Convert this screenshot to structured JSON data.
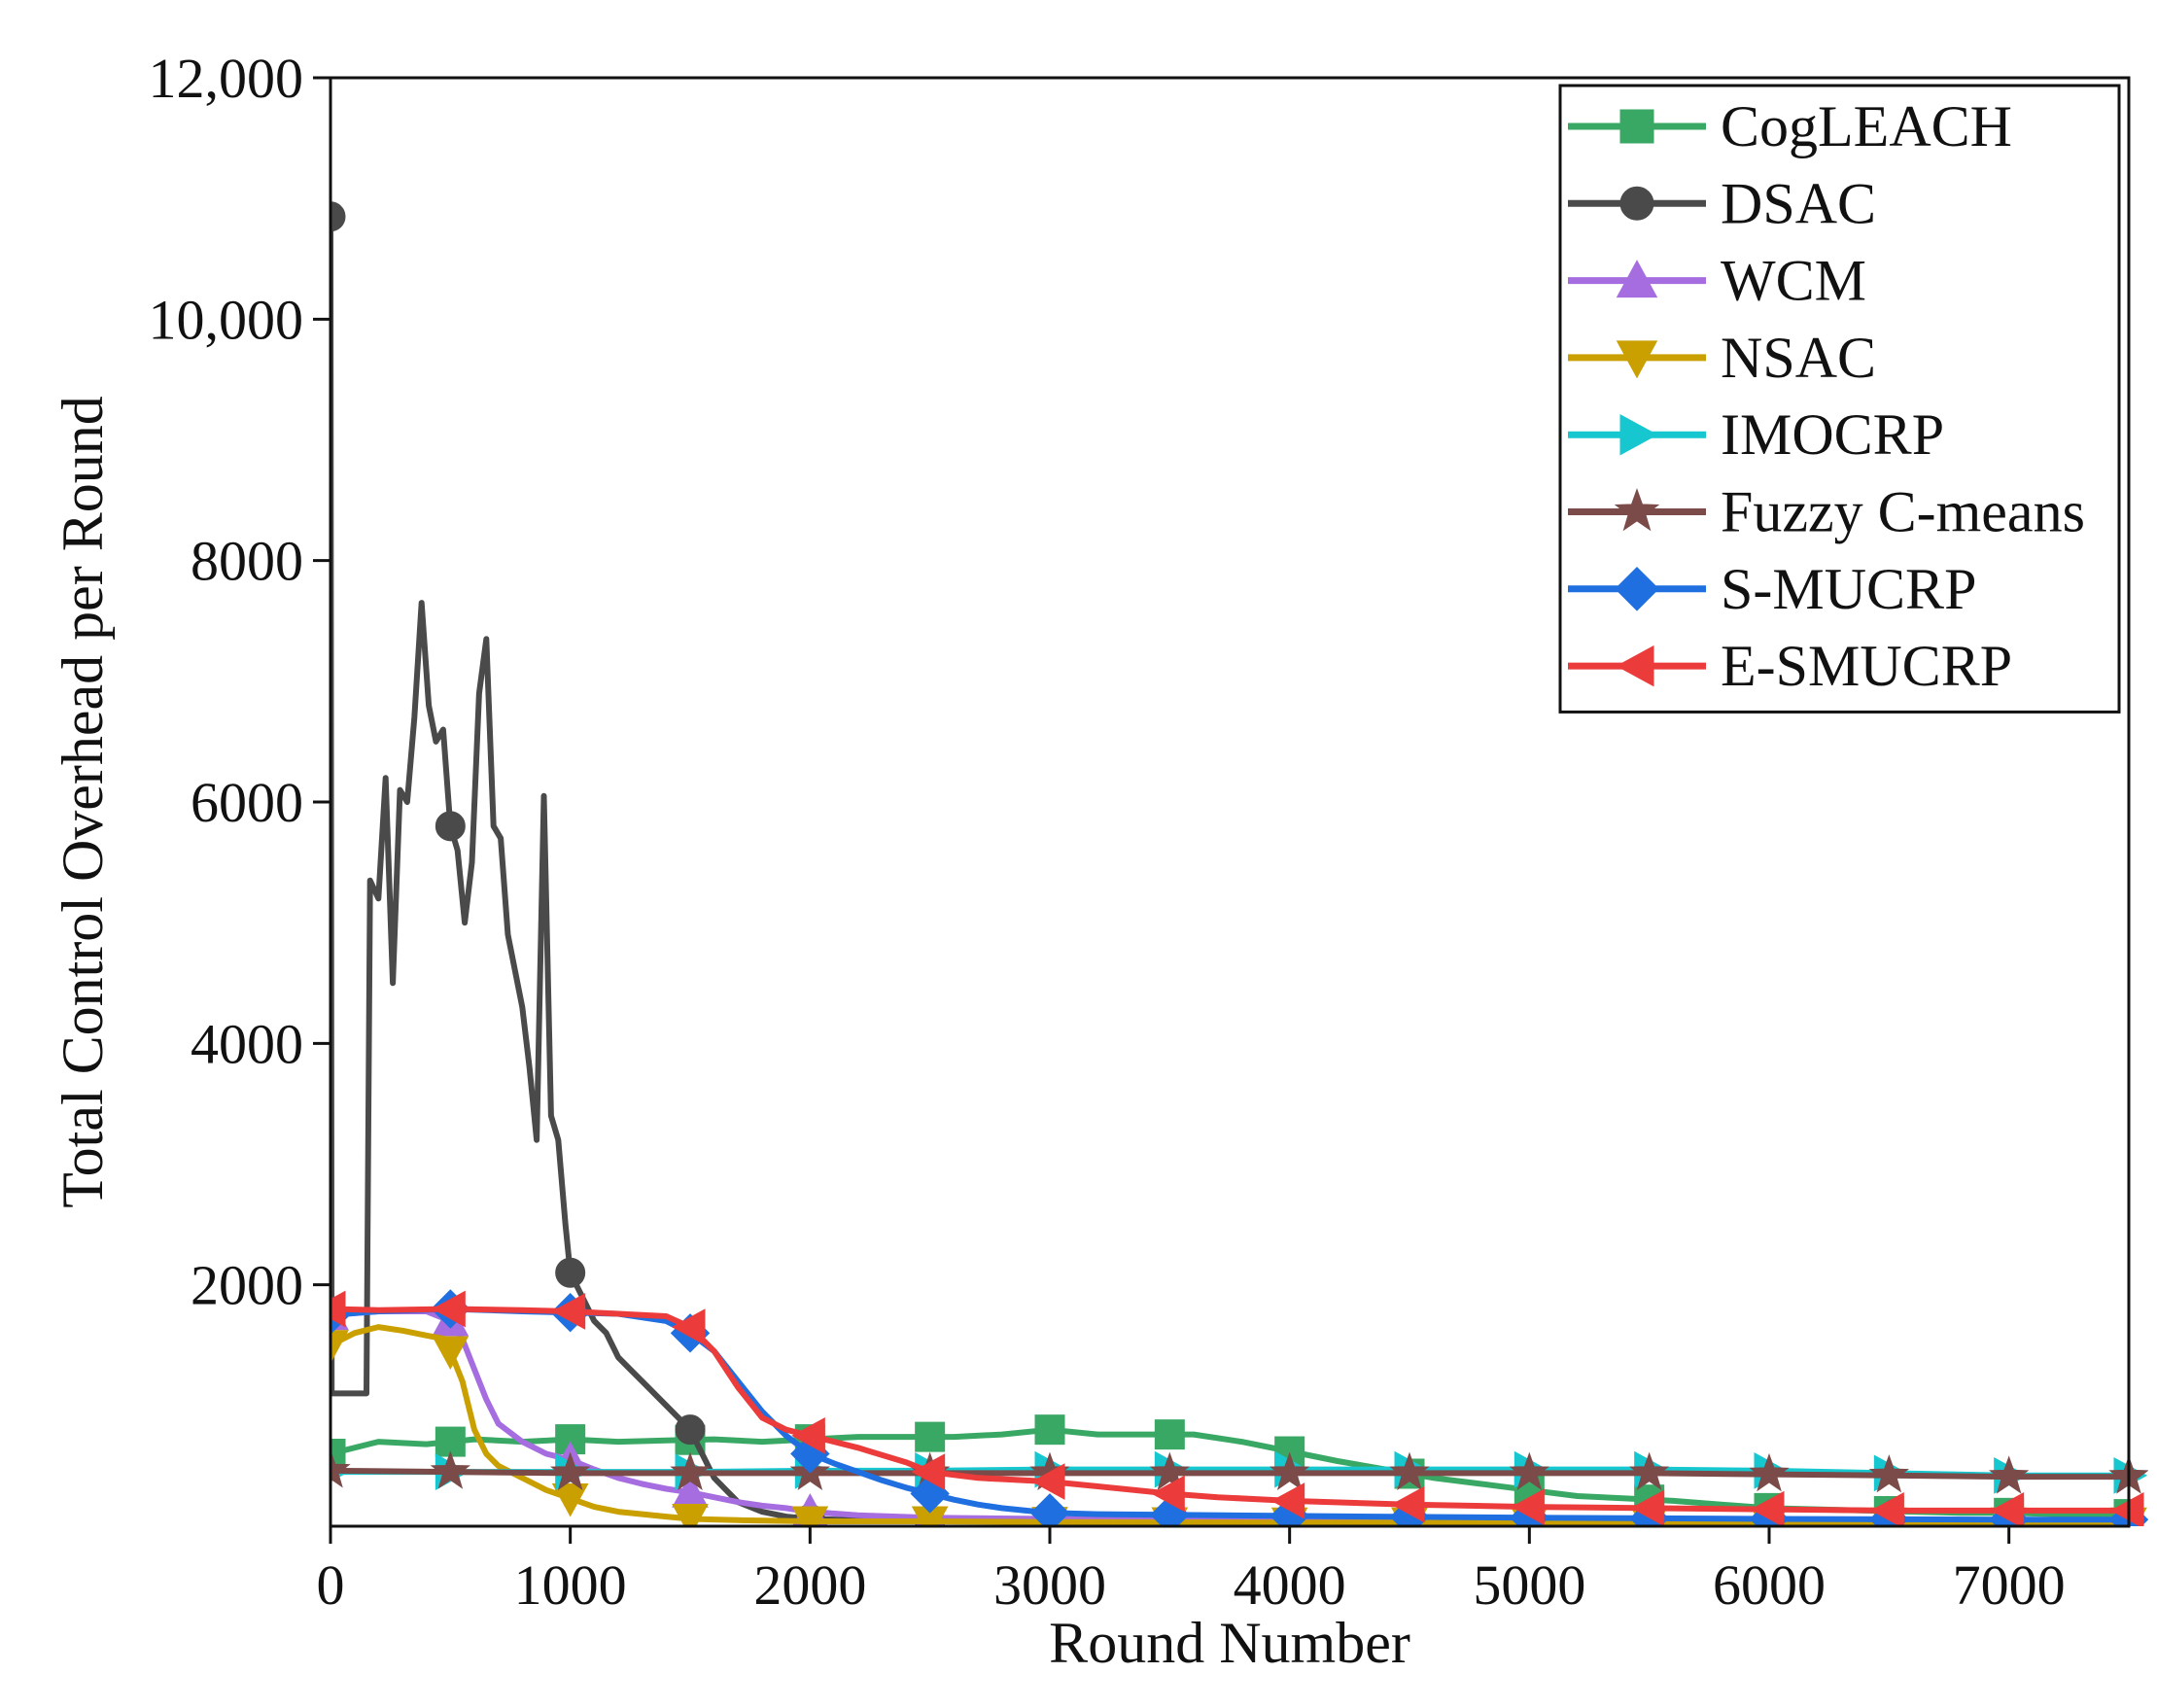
{
  "chart_data": {
    "type": "line",
    "title": "",
    "xlabel": "Round Number",
    "ylabel": "Total Control Overhead per Round",
    "xlim": [
      0,
      7500
    ],
    "ylim": [
      0,
      12000
    ],
    "x_ticks": [
      0,
      1000,
      2000,
      3000,
      4000,
      5000,
      6000,
      7000
    ],
    "x_tick_labels": [
      "0",
      "1000",
      "2000",
      "3000",
      "4000",
      "5000",
      "6000",
      "7000"
    ],
    "y_ticks": [
      2000,
      4000,
      6000,
      8000,
      10000,
      12000
    ],
    "y_tick_labels": [
      "2000",
      "4000",
      "6000",
      "8000",
      "10,000",
      "12,000"
    ],
    "grid": false,
    "legend_position": "top-right",
    "series": [
      {
        "name": "CogLEACH",
        "color": "#3aa865",
        "marker": "square",
        "points": [
          [
            0,
            600
          ],
          [
            200,
            700
          ],
          [
            400,
            680
          ],
          [
            600,
            720
          ],
          [
            800,
            700
          ],
          [
            1000,
            720
          ],
          [
            1200,
            700
          ],
          [
            1400,
            710
          ],
          [
            1600,
            720
          ],
          [
            1800,
            700
          ],
          [
            2000,
            720
          ],
          [
            2200,
            740
          ],
          [
            2400,
            740
          ],
          [
            2600,
            740
          ],
          [
            2800,
            760
          ],
          [
            3000,
            800
          ],
          [
            3200,
            760
          ],
          [
            3400,
            760
          ],
          [
            3600,
            760
          ],
          [
            3800,
            700
          ],
          [
            4000,
            620
          ],
          [
            4200,
            540
          ],
          [
            4400,
            470
          ],
          [
            4600,
            400
          ],
          [
            4800,
            350
          ],
          [
            5000,
            300
          ],
          [
            5200,
            250
          ],
          [
            5400,
            230
          ],
          [
            5600,
            210
          ],
          [
            5800,
            180
          ],
          [
            6000,
            150
          ],
          [
            6200,
            140
          ],
          [
            6400,
            130
          ],
          [
            6600,
            120
          ],
          [
            6800,
            110
          ],
          [
            7000,
            110
          ],
          [
            7200,
            100
          ],
          [
            7500,
            100
          ]
        ],
        "markers_x": [
          0,
          500,
          1000,
          1500,
          2000,
          2500,
          3000,
          3500,
          4000,
          4500,
          5000,
          5500,
          6000,
          6500,
          7000,
          7500
        ]
      },
      {
        "name": "DSAC",
        "color": "#4a4a4a",
        "marker": "circle",
        "points": [
          [
            0,
            10850
          ],
          [
            5,
            1100
          ],
          [
            150,
            1100
          ],
          [
            165,
            5350
          ],
          [
            200,
            5200
          ],
          [
            230,
            6200
          ],
          [
            260,
            4500
          ],
          [
            290,
            6100
          ],
          [
            320,
            6000
          ],
          [
            350,
            6700
          ],
          [
            380,
            7650
          ],
          [
            410,
            6800
          ],
          [
            440,
            6500
          ],
          [
            470,
            6600
          ],
          [
            500,
            5800
          ],
          [
            530,
            5600
          ],
          [
            560,
            5000
          ],
          [
            590,
            5500
          ],
          [
            620,
            6900
          ],
          [
            650,
            7350
          ],
          [
            680,
            5800
          ],
          [
            710,
            5700
          ],
          [
            740,
            4900
          ],
          [
            770,
            4600
          ],
          [
            800,
            4300
          ],
          [
            830,
            3800
          ],
          [
            860,
            3200
          ],
          [
            890,
            6050
          ],
          [
            920,
            3400
          ],
          [
            950,
            3200
          ],
          [
            980,
            2500
          ],
          [
            1000,
            2100
          ],
          [
            1050,
            1900
          ],
          [
            1100,
            1700
          ],
          [
            1150,
            1600
          ],
          [
            1200,
            1400
          ],
          [
            1250,
            1300
          ],
          [
            1300,
            1200
          ],
          [
            1350,
            1100
          ],
          [
            1400,
            1000
          ],
          [
            1450,
            900
          ],
          [
            1500,
            800
          ],
          [
            1550,
            600
          ],
          [
            1600,
            400
          ],
          [
            1650,
            300
          ],
          [
            1700,
            200
          ],
          [
            1800,
            120
          ],
          [
            1900,
            80
          ],
          [
            2000,
            60
          ],
          [
            2200,
            50
          ],
          [
            2500,
            40
          ],
          [
            3000,
            40
          ],
          [
            4000,
            35
          ],
          [
            7500,
            35
          ]
        ],
        "markers_x": [
          0,
          500,
          1000,
          1500,
          2000,
          2500,
          3000,
          3500,
          4000,
          4500,
          5000,
          5500,
          6000,
          6500,
          7000,
          7500
        ]
      },
      {
        "name": "WCM",
        "color": "#a56de0",
        "marker": "triangle-up",
        "points": [
          [
            0,
            1750
          ],
          [
            200,
            1780
          ],
          [
            400,
            1780
          ],
          [
            500,
            1700
          ],
          [
            550,
            1550
          ],
          [
            600,
            1300
          ],
          [
            650,
            1050
          ],
          [
            700,
            850
          ],
          [
            800,
            700
          ],
          [
            900,
            600
          ],
          [
            1000,
            550
          ],
          [
            1100,
            470
          ],
          [
            1200,
            400
          ],
          [
            1300,
            350
          ],
          [
            1400,
            310
          ],
          [
            1500,
            280
          ],
          [
            1600,
            240
          ],
          [
            1700,
            200
          ],
          [
            1800,
            170
          ],
          [
            1900,
            150
          ],
          [
            2000,
            120
          ],
          [
            2200,
            90
          ],
          [
            2500,
            70
          ],
          [
            3000,
            60
          ],
          [
            4000,
            50
          ],
          [
            5000,
            50
          ],
          [
            7500,
            50
          ]
        ],
        "markers_x": [
          0,
          500,
          1000,
          1500,
          2000,
          2500,
          3000,
          3500,
          4000,
          4500,
          5000,
          5500,
          6000,
          6500,
          7000,
          7500
        ]
      },
      {
        "name": "NSAC",
        "color": "#c9a000",
        "marker": "triangle-down",
        "points": [
          [
            0,
            1500
          ],
          [
            100,
            1600
          ],
          [
            200,
            1650
          ],
          [
            300,
            1620
          ],
          [
            400,
            1580
          ],
          [
            480,
            1550
          ],
          [
            550,
            1200
          ],
          [
            600,
            800
          ],
          [
            650,
            600
          ],
          [
            700,
            500
          ],
          [
            800,
            400
          ],
          [
            900,
            300
          ],
          [
            1000,
            230
          ],
          [
            1100,
            160
          ],
          [
            1200,
            120
          ],
          [
            1300,
            100
          ],
          [
            1400,
            80
          ],
          [
            1500,
            60
          ],
          [
            1700,
            50
          ],
          [
            2000,
            40
          ],
          [
            2500,
            40
          ],
          [
            3000,
            35
          ],
          [
            4000,
            30
          ],
          [
            7500,
            30
          ]
        ],
        "markers_x": [
          0,
          500,
          1000,
          1500,
          2000,
          2500,
          3000,
          3500,
          4000,
          4500,
          5000,
          5500,
          6000,
          6500,
          7000,
          7500
        ]
      },
      {
        "name": "IMOCRP",
        "color": "#16c7d0",
        "marker": "triangle-right",
        "points": [
          [
            0,
            450
          ],
          [
            500,
            450
          ],
          [
            1000,
            450
          ],
          [
            1500,
            450
          ],
          [
            2000,
            460
          ],
          [
            2500,
            460
          ],
          [
            3000,
            470
          ],
          [
            3500,
            470
          ],
          [
            4000,
            470
          ],
          [
            4500,
            470
          ],
          [
            5000,
            470
          ],
          [
            5500,
            470
          ],
          [
            6000,
            460
          ],
          [
            6500,
            440
          ],
          [
            7000,
            420
          ],
          [
            7500,
            420
          ]
        ],
        "markers_x": [
          0,
          500,
          1000,
          1500,
          2000,
          2500,
          3000,
          3500,
          4000,
          4500,
          5000,
          5500,
          6000,
          6500,
          7000,
          7500
        ]
      },
      {
        "name": "Fuzzy C-means",
        "color": "#7a4b48",
        "marker": "star",
        "points": [
          [
            0,
            460
          ],
          [
            500,
            450
          ],
          [
            1000,
            440
          ],
          [
            1500,
            440
          ],
          [
            2000,
            440
          ],
          [
            2500,
            440
          ],
          [
            3000,
            440
          ],
          [
            3500,
            440
          ],
          [
            4000,
            440
          ],
          [
            4500,
            440
          ],
          [
            5000,
            440
          ],
          [
            5500,
            440
          ],
          [
            6000,
            430
          ],
          [
            6500,
            420
          ],
          [
            7000,
            410
          ],
          [
            7500,
            410
          ]
        ],
        "markers_x": [
          0,
          500,
          1000,
          1500,
          2000,
          2500,
          3000,
          3500,
          4000,
          4500,
          5000,
          5500,
          6000,
          6500,
          7000,
          7500
        ]
      },
      {
        "name": "S-MUCRP",
        "color": "#1f6fe0",
        "marker": "diamond",
        "points": [
          [
            0,
            1750
          ],
          [
            200,
            1780
          ],
          [
            500,
            1800
          ],
          [
            800,
            1780
          ],
          [
            1000,
            1770
          ],
          [
            1200,
            1760
          ],
          [
            1400,
            1700
          ],
          [
            1500,
            1600
          ],
          [
            1600,
            1450
          ],
          [
            1700,
            1200
          ],
          [
            1800,
            950
          ],
          [
            1900,
            750
          ],
          [
            2000,
            600
          ],
          [
            2100,
            520
          ],
          [
            2200,
            450
          ],
          [
            2300,
            380
          ],
          [
            2400,
            320
          ],
          [
            2500,
            270
          ],
          [
            2600,
            220
          ],
          [
            2700,
            180
          ],
          [
            2800,
            150
          ],
          [
            2900,
            130
          ],
          [
            3000,
            110
          ],
          [
            3200,
            100
          ],
          [
            3500,
            95
          ],
          [
            4000,
            85
          ],
          [
            5000,
            70
          ],
          [
            6000,
            60
          ],
          [
            7000,
            55
          ],
          [
            7500,
            55
          ]
        ],
        "markers_x": [
          0,
          500,
          1000,
          1500,
          2000,
          2500,
          3000,
          3500,
          4000,
          4500,
          5000,
          5500,
          6000,
          6500,
          7000,
          7500
        ]
      },
      {
        "name": "E-SMUCRP",
        "color": "#ec3b3b",
        "marker": "triangle-left",
        "points": [
          [
            0,
            1800
          ],
          [
            200,
            1790
          ],
          [
            500,
            1800
          ],
          [
            800,
            1790
          ],
          [
            1000,
            1780
          ],
          [
            1200,
            1760
          ],
          [
            1400,
            1740
          ],
          [
            1500,
            1650
          ],
          [
            1600,
            1450
          ],
          [
            1700,
            1150
          ],
          [
            1800,
            900
          ],
          [
            1900,
            800
          ],
          [
            2000,
            750
          ],
          [
            2200,
            650
          ],
          [
            2400,
            530
          ],
          [
            2500,
            450
          ],
          [
            2700,
            400
          ],
          [
            3000,
            370
          ],
          [
            3200,
            330
          ],
          [
            3500,
            270
          ],
          [
            3700,
            240
          ],
          [
            4000,
            210
          ],
          [
            4500,
            180
          ],
          [
            5000,
            160
          ],
          [
            5500,
            150
          ],
          [
            6000,
            140
          ],
          [
            6500,
            130
          ],
          [
            7000,
            130
          ],
          [
            7500,
            130
          ]
        ],
        "markers_x": [
          0,
          500,
          1000,
          1500,
          2000,
          2500,
          3000,
          3500,
          4000,
          4500,
          5000,
          5500,
          6000,
          6500,
          7000,
          7500
        ]
      }
    ]
  }
}
